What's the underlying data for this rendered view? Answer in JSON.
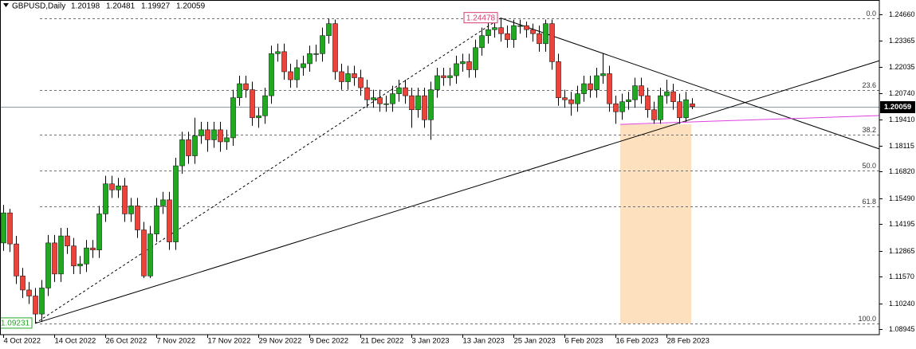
{
  "chart_data": {
    "type": "candlestick",
    "symbol": "GBPUSD,Daily",
    "categories": [
      "4 Oct 2022",
      null,
      null,
      null,
      null,
      null,
      null,
      null,
      "14 Oct 2022",
      null,
      null,
      null,
      null,
      null,
      null,
      null,
      "26 Oct 2022",
      null,
      null,
      null,
      null,
      null,
      null,
      null,
      "7 Nov 2022",
      null,
      null,
      null,
      null,
      null,
      null,
      null,
      "17 Nov 2022",
      null,
      null,
      null,
      null,
      null,
      null,
      null,
      "29 Nov 2022",
      null,
      null,
      null,
      null,
      null,
      null,
      null,
      "9 Dec 2022",
      null,
      null,
      null,
      null,
      null,
      null,
      null,
      "21 Dec 2022",
      null,
      null,
      null,
      null,
      null,
      null,
      null,
      "3 Jan 2023",
      null,
      null,
      null,
      null,
      null,
      null,
      null,
      "13 Jan 2023",
      null,
      null,
      null,
      null,
      null,
      null,
      null,
      "25 Jan 2023",
      null,
      null,
      null,
      null,
      null,
      null,
      null,
      "6 Feb 2023",
      null,
      null,
      null,
      null,
      null,
      null,
      null,
      "16 Feb 2023",
      null,
      null,
      null,
      null,
      null,
      null,
      null,
      "28 Feb 2023",
      null,
      null,
      null,
      null
    ],
    "open": [
      1.1325,
      1.1475,
      1.132,
      1.116,
      1.109,
      1.106,
      1.097,
      1.11,
      1.1325,
      1.117,
      1.136,
      1.131,
      1.121,
      1.122,
      1.13,
      1.129,
      1.147,
      1.162,
      1.159,
      1.161,
      1.147,
      1.151,
      1.139,
      1.116,
      1.137,
      1.151,
      1.154,
      1.133,
      1.171,
      1.184,
      1.176,
      1.186,
      1.189,
      1.184,
      1.189,
      1.183,
      1.185,
      1.205,
      1.212,
      1.209,
      1.195,
      1.196,
      1.206,
      1.227,
      1.228,
      1.218,
      1.214,
      1.22,
      1.222,
      1.227,
      1.227,
      1.236,
      1.242,
      1.218,
      1.213,
      1.217,
      1.215,
      1.21,
      1.204,
      1.205,
      1.202,
      1.202,
      1.207,
      1.21,
      1.206,
      1.199,
      1.206,
      1.194,
      1.209,
      1.216,
      1.215,
      1.216,
      1.222,
      1.223,
      1.219,
      1.23,
      1.236,
      1.239,
      1.24,
      1.237,
      1.234,
      1.241,
      1.241,
      1.239,
      1.237,
      1.232,
      1.242,
      1.223,
      1.205,
      1.204,
      1.202,
      1.207,
      1.212,
      1.209,
      1.216,
      1.217,
      1.202,
      1.198,
      1.203,
      1.204,
      1.211,
      1.206,
      1.199,
      1.194,
      1.206,
      1.208,
      1.203,
      1.195,
      1.20198
    ],
    "high": [
      1.1515,
      1.1495,
      1.136,
      1.12,
      1.113,
      1.11,
      1.114,
      1.1365,
      1.1365,
      1.14,
      1.14,
      1.135,
      1.126,
      1.134,
      1.134,
      1.151,
      1.166,
      1.166,
      1.165,
      1.165,
      1.155,
      1.155,
      1.143,
      1.141,
      1.155,
      1.158,
      1.158,
      1.175,
      1.188,
      1.188,
      1.195,
      1.193,
      1.193,
      1.193,
      1.193,
      1.189,
      1.209,
      1.216,
      1.216,
      1.213,
      1.2,
      1.21,
      1.231,
      1.232,
      1.232,
      1.222,
      1.224,
      1.226,
      1.231,
      1.2315,
      1.24,
      1.2446,
      1.244,
      1.222,
      1.221,
      1.221,
      1.219,
      1.214,
      1.209,
      1.209,
      1.206,
      1.211,
      1.214,
      1.214,
      1.21,
      1.21,
      1.21,
      1.213,
      1.22,
      1.22,
      1.22,
      1.226,
      1.227,
      1.227,
      1.234,
      1.24,
      1.243,
      1.244,
      1.2448,
      1.241,
      1.244,
      1.244,
      1.243,
      1.242,
      1.241,
      1.244,
      1.244,
      1.227,
      1.209,
      1.208,
      1.211,
      1.216,
      1.216,
      1.22,
      1.227,
      1.221,
      1.206,
      1.207,
      1.208,
      1.215,
      1.215,
      1.21,
      1.203,
      1.21,
      1.214,
      1.212,
      1.207,
      1.208,
      1.20481
    ],
    "low": [
      1.1285,
      1.128,
      1.112,
      1.105,
      1.102,
      1.0923,
      1.093,
      1.106,
      1.113,
      1.113,
      1.127,
      1.117,
      1.117,
      1.118,
      1.125,
      1.125,
      1.143,
      1.155,
      1.155,
      1.143,
      1.143,
      1.135,
      1.115,
      1.115,
      1.133,
      1.147,
      1.129,
      1.129,
      1.167,
      1.172,
      1.172,
      1.182,
      1.178,
      1.18,
      1.178,
      1.179,
      1.181,
      1.201,
      1.205,
      1.191,
      1.19,
      1.192,
      1.202,
      1.223,
      1.214,
      1.21,
      1.21,
      1.216,
      1.218,
      1.223,
      1.223,
      1.232,
      1.214,
      1.209,
      1.209,
      1.211,
      1.206,
      1.2,
      1.2,
      1.198,
      1.198,
      1.198,
      1.203,
      1.202,
      1.19,
      1.195,
      1.19,
      1.184,
      1.205,
      1.211,
      1.211,
      1.212,
      1.218,
      1.215,
      1.215,
      1.226,
      1.232,
      1.235,
      1.233,
      1.23,
      1.23,
      1.237,
      1.235,
      1.233,
      1.228,
      1.228,
      1.219,
      1.201,
      1.2,
      1.196,
      1.198,
      1.203,
      1.205,
      1.205,
      1.212,
      1.198,
      1.192,
      1.194,
      1.199,
      1.2,
      1.202,
      1.195,
      1.192,
      1.192,
      1.202,
      1.199,
      1.192,
      1.193,
      1.19927
    ],
    "close": [
      1.1475,
      1.132,
      1.116,
      1.109,
      1.106,
      1.097,
      1.11,
      1.1325,
      1.117,
      1.136,
      1.131,
      1.121,
      1.122,
      1.13,
      1.129,
      1.147,
      1.162,
      1.159,
      1.161,
      1.147,
      1.151,
      1.139,
      1.116,
      1.137,
      1.151,
      1.154,
      1.133,
      1.171,
      1.184,
      1.176,
      1.186,
      1.189,
      1.184,
      1.189,
      1.183,
      1.185,
      1.205,
      1.212,
      1.209,
      1.195,
      1.196,
      1.206,
      1.227,
      1.228,
      1.218,
      1.214,
      1.22,
      1.222,
      1.227,
      1.227,
      1.236,
      1.242,
      1.218,
      1.213,
      1.217,
      1.215,
      1.21,
      1.204,
      1.205,
      1.202,
      1.202,
      1.207,
      1.21,
      1.206,
      1.199,
      1.206,
      1.194,
      1.209,
      1.216,
      1.215,
      1.216,
      1.222,
      1.223,
      1.219,
      1.23,
      1.236,
      1.239,
      1.24,
      1.237,
      1.234,
      1.241,
      1.241,
      1.239,
      1.237,
      1.232,
      1.242,
      1.223,
      1.205,
      1.204,
      1.202,
      1.207,
      1.212,
      1.209,
      1.216,
      1.217,
      1.202,
      1.198,
      1.203,
      1.204,
      1.211,
      1.206,
      1.199,
      1.194,
      1.206,
      1.208,
      1.203,
      1.195,
      1.204,
      1.20059
    ],
    "up_color": "#22a822",
    "down_color": "#e8453c",
    "ylim": [
      1.0867,
      1.2538
    ],
    "yticks": [
      {
        "value": 1.2466,
        "label": "1.24660"
      },
      1.23365,
      1.22035,
      {
        "value": 1.2074,
        "label": "1.20740"
      },
      {
        "value": 1.1941,
        "label": "1.19410"
      },
      1.18115,
      {
        "value": 1.1682,
        "label": "1.16820"
      },
      {
        "value": 1.1549,
        "label": "1.15490"
      },
      1.14195,
      1.12865,
      {
        "value": 1.1157,
        "label": "1.11570"
      },
      {
        "value": 1.1024,
        "label": "1.10240"
      },
      1.08945
    ],
    "fibonacci": {
      "color": "#707070",
      "levels": [
        {
          "label": "0.0",
          "value": 1.2448
        },
        {
          "label": "23.6",
          "value": 1.2088
        },
        {
          "label": "38.2",
          "value": 1.1865
        },
        {
          "label": "50.0",
          "value": 1.16855
        },
        {
          "label": "61.8",
          "value": 1.1506
        },
        {
          "label": "100.0",
          "value": 1.0923
        }
      ]
    },
    "trendlines": [
      {
        "style": "dashed",
        "color": "#000000",
        "points": [
          [
            5,
            1.0923
          ],
          [
            78,
            1.2448
          ]
        ]
      },
      {
        "style": "solid",
        "color": "#000000",
        "points": [
          [
            5,
            1.0923
          ],
          [
            137.4,
            1.2235
          ]
        ]
      },
      {
        "style": "solid",
        "color": "#000000",
        "points": [
          [
            78,
            1.2448
          ],
          [
            137.4,
            1.1794
          ]
        ]
      },
      {
        "style": "solid",
        "color": "#e040e0",
        "points": [
          [
            96.75,
            1.1917
          ],
          [
            137.4,
            1.1961
          ]
        ]
      }
    ],
    "zone": {
      "color": "#fde0bd",
      "x": [
        96.75,
        107.9
      ],
      "y": [
        1.0923,
        1.1917
      ]
    },
    "price_labels": [
      {
        "value": 1.24478,
        "bar": 78,
        "color": "#d63a6f"
      },
      {
        "value": 1.09231,
        "bar": 5,
        "color": "#22a822"
      }
    ]
  }
}
